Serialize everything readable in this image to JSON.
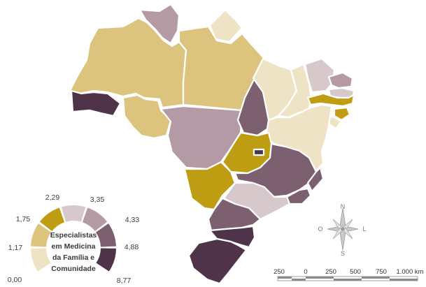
{
  "legend": {
    "title_lines": [
      "Especialistas",
      "em Medicina",
      "da Família e",
      "Comunidade"
    ],
    "breaks": [
      "0,00",
      "1,17",
      "1,75",
      "2,29",
      "3,35",
      "4,33",
      "4,88",
      "8,77"
    ],
    "class_colors": [
      "#efe3c6",
      "#dcc47f",
      "#bf9d12",
      "#d7c8cc",
      "#b39aa4",
      "#7d6070",
      "#4f3349"
    ]
  },
  "compass": {
    "north": "N",
    "south": "S",
    "east": "L",
    "west": "O"
  },
  "scale_bar": {
    "labels": [
      "250",
      "0",
      "250",
      "500",
      "750",
      "1.000 km"
    ]
  },
  "states": [
    {
      "code": "RR",
      "class": 4
    },
    {
      "code": "AP",
      "class": 0
    },
    {
      "code": "AM",
      "class": 1
    },
    {
      "code": "PA",
      "class": 1
    },
    {
      "code": "AC",
      "class": 6
    },
    {
      "code": "RO",
      "class": 1
    },
    {
      "code": "MT",
      "class": 4
    },
    {
      "code": "TO",
      "class": 5
    },
    {
      "code": "MA",
      "class": 0
    },
    {
      "code": "PI",
      "class": 0
    },
    {
      "code": "CE",
      "class": 3
    },
    {
      "code": "RN",
      "class": 4
    },
    {
      "code": "PB",
      "class": 3
    },
    {
      "code": "PE",
      "class": 2
    },
    {
      "code": "AL",
      "class": 2
    },
    {
      "code": "SE",
      "class": 0
    },
    {
      "code": "BA",
      "class": 0
    },
    {
      "code": "GO",
      "class": 2
    },
    {
      "code": "DF",
      "class": 6
    },
    {
      "code": "MS",
      "class": 2
    },
    {
      "code": "MG",
      "class": 5
    },
    {
      "code": "ES",
      "class": 5
    },
    {
      "code": "RJ",
      "class": 5
    },
    {
      "code": "SP",
      "class": 3
    },
    {
      "code": "PR",
      "class": 5
    },
    {
      "code": "SC",
      "class": 6
    },
    {
      "code": "RS",
      "class": 6
    }
  ]
}
